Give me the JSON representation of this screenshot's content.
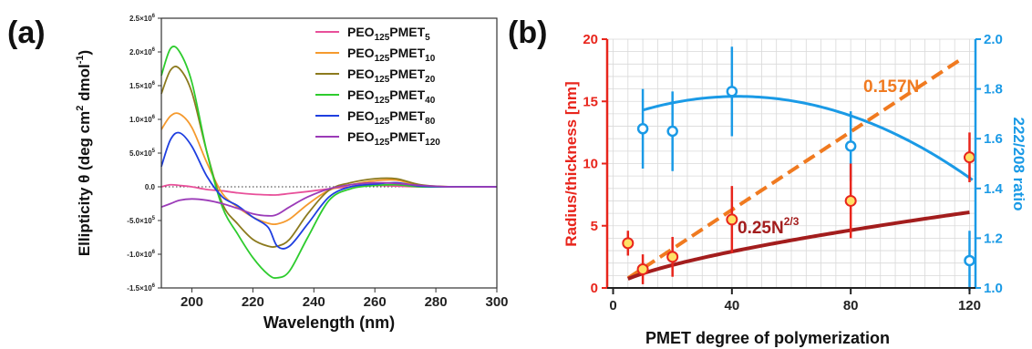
{
  "labels": {
    "panel_a": "(a)",
    "panel_b": "(b)"
  },
  "chart_data": [
    {
      "type": "line",
      "panel": "(a)",
      "xlabel": "Wavelength (nm)",
      "ylabel": "Ellipticity θ (deg cm² dmol⁻¹)",
      "ylabel_parts": {
        "main": "Ellipticity θ (deg cm",
        "sup1": "2",
        "mid": " dmol",
        "sup2": "-1",
        "end": ")"
      },
      "xlim": [
        190,
        300
      ],
      "ylim": [
        -1500000,
        2500000
      ],
      "x_ticks": [
        200,
        220,
        240,
        260,
        280,
        300
      ],
      "x_tick_labels": [
        "200",
        "220",
        "240",
        "260",
        "280",
        "300"
      ],
      "y_ticks": [
        -1500000,
        -1000000,
        -500000,
        0,
        500000,
        1000000,
        1500000,
        2000000,
        2500000
      ],
      "y_tick_labels": [
        {
          "base": "-1.5×10",
          "exp": "6"
        },
        {
          "base": "-1.0×10",
          "exp": "6"
        },
        {
          "base": "-5.0×10",
          "exp": "5"
        },
        {
          "base": "0.0",
          "exp": ""
        },
        {
          "base": "5.0×10",
          "exp": "5"
        },
        {
          "base": "1.0×10",
          "exp": "6"
        },
        {
          "base": "1.5×10",
          "exp": "6"
        },
        {
          "base": "2.0×10",
          "exp": "6"
        },
        {
          "base": "2.5×10",
          "exp": "6"
        }
      ],
      "x": [
        190,
        193,
        196,
        200,
        205,
        210,
        215,
        220,
        225,
        228,
        232,
        238,
        245,
        252,
        260,
        267,
        275,
        285,
        300
      ],
      "series": [
        {
          "name_main": "PEO",
          "name_sub1": "125",
          "name_mid": "PMET",
          "name_sub2": "5",
          "color": "#e8509a",
          "values": [
            0,
            30000,
            20000,
            0,
            -40000,
            -60000,
            -90000,
            -110000,
            -120000,
            -120000,
            -100000,
            -70000,
            -30000,
            0,
            20000,
            10000,
            0,
            0,
            0
          ]
        },
        {
          "name_main": "PEO",
          "name_sub1": "125",
          "name_mid": "PMET",
          "name_sub2": "10",
          "color": "#f59a2e",
          "values": [
            850000,
            1050000,
            1080000,
            880000,
            350000,
            -100000,
            -300000,
            -450000,
            -540000,
            -550000,
            -480000,
            -260000,
            -50000,
            30000,
            90000,
            100000,
            20000,
            0,
            0
          ]
        },
        {
          "name_main": "PEO",
          "name_sub1": "125",
          "name_mid": "PMET",
          "name_sub2": "20",
          "color": "#8c7a1e",
          "values": [
            1380000,
            1730000,
            1750000,
            1400000,
            500000,
            -250000,
            -550000,
            -780000,
            -880000,
            -880000,
            -780000,
            -400000,
            -50000,
            60000,
            120000,
            120000,
            30000,
            0,
            0
          ]
        },
        {
          "name_main": "PEO",
          "name_sub1": "125",
          "name_mid": "PMET",
          "name_sub2": "40",
          "color": "#2ecc2e",
          "values": [
            1650000,
            2050000,
            2000000,
            1550000,
            500000,
            -300000,
            -700000,
            -1050000,
            -1300000,
            -1350000,
            -1250000,
            -750000,
            -200000,
            -30000,
            20000,
            30000,
            0,
            0,
            0
          ]
        },
        {
          "name_main": "PEO",
          "name_sub1": "125",
          "name_mid": "PMET",
          "name_sub2": "80",
          "color": "#1f3fe0",
          "values": [
            300000,
            700000,
            800000,
            600000,
            150000,
            -150000,
            -280000,
            -450000,
            -600000,
            -880000,
            -880000,
            -550000,
            -150000,
            0,
            40000,
            60000,
            10000,
            0,
            0
          ]
        },
        {
          "name_main": "PEO",
          "name_sub1": "125",
          "name_mid": "PMET",
          "name_sub2": "120",
          "color": "#9b3bb8",
          "values": [
            -300000,
            -250000,
            -200000,
            -180000,
            -200000,
            -250000,
            -320000,
            -400000,
            -430000,
            -410000,
            -300000,
            -150000,
            -30000,
            30000,
            60000,
            50000,
            20000,
            0,
            0
          ]
        }
      ]
    },
    {
      "type": "scatter",
      "panel": "(b)",
      "xlabel": "PMET degree of polymerization",
      "ylabel_left": "Radius/thickness [nm]",
      "ylabel_right": "222/208 ratio",
      "xlim": [
        -2,
        122
      ],
      "ylim_left": [
        0,
        20
      ],
      "ylim_right": [
        1.0,
        2.0
      ],
      "x_ticks": [
        0,
        40,
        80,
        120
      ],
      "x_tick_labels": [
        "0",
        "40",
        "80",
        "120"
      ],
      "y_ticks_left": [
        0,
        5,
        10,
        15,
        20
      ],
      "y_tick_labels_left": [
        "0",
        "5",
        "10",
        "15",
        "20"
      ],
      "y_ticks_right": [
        1.0,
        1.2,
        1.4,
        1.6,
        1.8,
        2.0
      ],
      "y_tick_labels_right": [
        "1.0",
        "1.2",
        "1.4",
        "1.6",
        "1.8",
        "2.0"
      ],
      "grid": true,
      "colors": {
        "radius": "#e8251c",
        "marker_fill": "#ffe066",
        "ratio": "#1a9ae6",
        "fit_linear": "#f07a20",
        "fit_power": "#a31d1d"
      },
      "radius": {
        "x": [
          5,
          10,
          20,
          40,
          80,
          120
        ],
        "y": [
          3.6,
          1.5,
          2.5,
          5.5,
          7.0,
          10.5
        ],
        "err": [
          1.0,
          1.2,
          1.6,
          2.7,
          3.0,
          2.0
        ]
      },
      "ratio": {
        "x": [
          10,
          20,
          40,
          80,
          120
        ],
        "y": [
          1.64,
          1.63,
          1.79,
          1.57,
          1.11
        ],
        "err": [
          0.16,
          0.16,
          0.18,
          0.14,
          0.12
        ],
        "fit_vertex_x": 42,
        "fit_vertex_y": 1.77,
        "fit_curvature": 5.38e-05
      },
      "fit_linear": {
        "label": "0.157N",
        "slope": 0.157,
        "x_range": [
          5,
          118
        ]
      },
      "fit_power": {
        "label_main": "0.25N",
        "label_exp": "2/3",
        "coeff": 0.25,
        "exponent": 0.6667,
        "x_range": [
          5,
          120
        ]
      }
    }
  ]
}
